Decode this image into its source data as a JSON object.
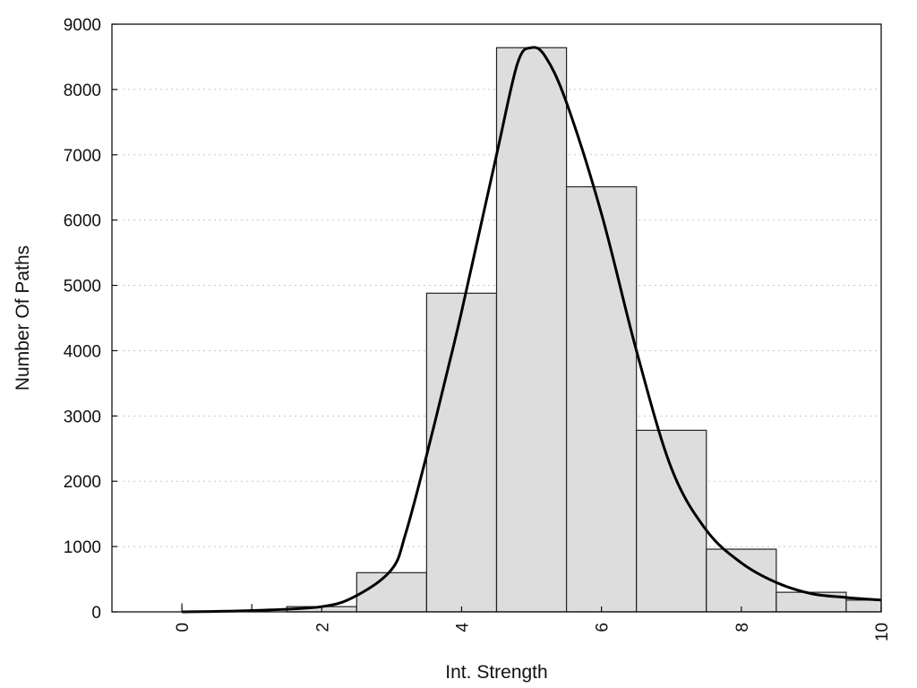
{
  "chart_data": {
    "type": "bar",
    "title": "",
    "xlabel": "Int. Strength",
    "ylabel": "Number Of Paths",
    "xlim": [
      -1,
      10
    ],
    "ylim": [
      0,
      9000
    ],
    "x_ticks": [
      0,
      2,
      4,
      6,
      8,
      10
    ],
    "y_ticks": [
      0,
      1000,
      2000,
      3000,
      4000,
      5000,
      6000,
      7000,
      8000,
      9000
    ],
    "grid": "horizontal dotted",
    "bar_fill": "#dddddd",
    "bars": [
      {
        "x0": 0,
        "x1": 0,
        "value": 130
      },
      {
        "x0": 1,
        "x1": 1,
        "value": 120
      },
      {
        "x0": 1.5,
        "x1": 2.5,
        "value": 80
      },
      {
        "x0": 2.5,
        "x1": 3.5,
        "value": 600
      },
      {
        "x0": 3.5,
        "x1": 4.5,
        "value": 4880
      },
      {
        "x0": 4.5,
        "x1": 5.5,
        "value": 8640
      },
      {
        "x0": 5.5,
        "x1": 6.5,
        "value": 6510
      },
      {
        "x0": 6.5,
        "x1": 7.5,
        "value": 2780
      },
      {
        "x0": 7.5,
        "x1": 8.5,
        "value": 960
      },
      {
        "x0": 8.5,
        "x1": 9.5,
        "value": 300
      },
      {
        "x0": 9.5,
        "x1": 10,
        "value": 180
      }
    ],
    "fit_curve": {
      "x": [
        0,
        1,
        2,
        2.5,
        3,
        3.2,
        3.5,
        3.8,
        4,
        4.5,
        4.8,
        5,
        5.2,
        5.5,
        6,
        6.5,
        7,
        7.5,
        8,
        8.5,
        9,
        9.5,
        10
      ],
      "y": [
        0,
        20,
        80,
        250,
        650,
        1200,
        2400,
        3700,
        4600,
        7000,
        8400,
        8640,
        8500,
        7800,
        6100,
        4000,
        2200,
        1250,
        750,
        450,
        280,
        220,
        180
      ]
    }
  }
}
